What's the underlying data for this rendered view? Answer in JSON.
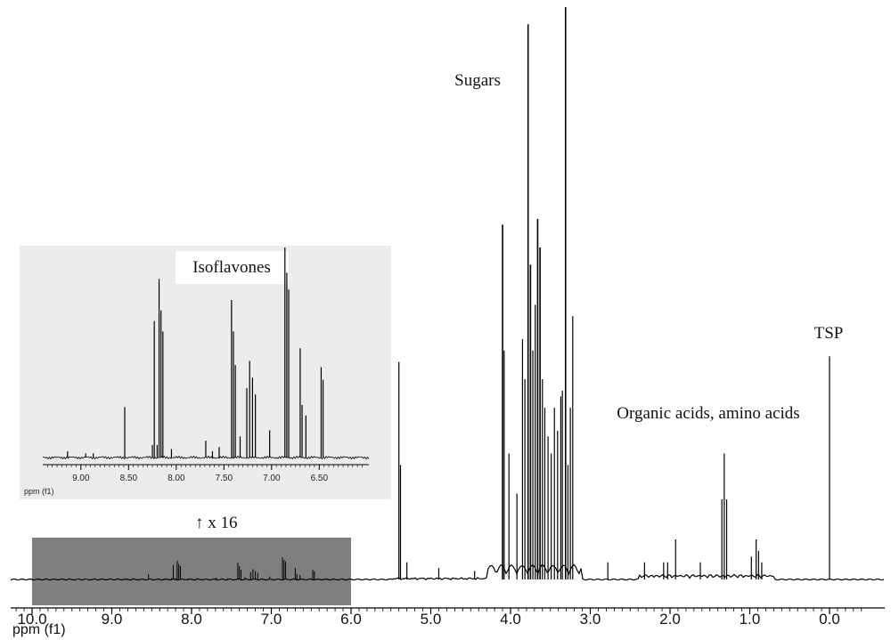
{
  "chart_data": [
    {
      "type": "line",
      "role": "main-spectrum",
      "xlabel": "ppm (f1)",
      "xlim": [
        10.5,
        -0.5
      ],
      "x_reversed": true,
      "ticks": [
        10.0,
        9.0,
        8.0,
        7.0,
        6.0,
        5.0,
        4.0,
        3.0,
        2.0,
        1.0,
        0.0
      ],
      "tick_labels": [
        "10.0",
        "9.0",
        "8.0",
        "7.0",
        "6.0",
        "5.0",
        "4.0",
        "3.0",
        "2.0",
        "1.0",
        "0.0"
      ],
      "ylim": [
        0,
        100
      ],
      "peaks": [
        {
          "x": 5.4,
          "y": 38
        },
        {
          "x": 5.38,
          "y": 20
        },
        {
          "x": 5.3,
          "y": 3
        },
        {
          "x": 4.9,
          "y": 2
        },
        {
          "x": 4.45,
          "y": 1.5
        },
        {
          "x": 4.1,
          "y": 62
        },
        {
          "x": 4.08,
          "y": 40
        },
        {
          "x": 4.02,
          "y": 22
        },
        {
          "x": 3.92,
          "y": 15
        },
        {
          "x": 3.85,
          "y": 42
        },
        {
          "x": 3.82,
          "y": 35
        },
        {
          "x": 3.78,
          "y": 97
        },
        {
          "x": 3.75,
          "y": 55
        },
        {
          "x": 3.72,
          "y": 40
        },
        {
          "x": 3.69,
          "y": 48
        },
        {
          "x": 3.66,
          "y": 63
        },
        {
          "x": 3.63,
          "y": 58
        },
        {
          "x": 3.6,
          "y": 35
        },
        {
          "x": 3.57,
          "y": 30
        },
        {
          "x": 3.53,
          "y": 25
        },
        {
          "x": 3.49,
          "y": 22
        },
        {
          "x": 3.45,
          "y": 30
        },
        {
          "x": 3.41,
          "y": 26
        },
        {
          "x": 3.37,
          "y": 32
        },
        {
          "x": 3.35,
          "y": 33
        },
        {
          "x": 3.31,
          "y": 100
        },
        {
          "x": 3.28,
          "y": 20
        },
        {
          "x": 3.25,
          "y": 30
        },
        {
          "x": 3.22,
          "y": 46
        },
        {
          "x": 2.78,
          "y": 3
        },
        {
          "x": 2.32,
          "y": 3
        },
        {
          "x": 2.08,
          "y": 3
        },
        {
          "x": 2.03,
          "y": 3
        },
        {
          "x": 1.93,
          "y": 7
        },
        {
          "x": 1.62,
          "y": 3
        },
        {
          "x": 1.35,
          "y": 14
        },
        {
          "x": 1.32,
          "y": 22
        },
        {
          "x": 1.29,
          "y": 14
        },
        {
          "x": 0.98,
          "y": 4
        },
        {
          "x": 0.92,
          "y": 7
        },
        {
          "x": 0.89,
          "y": 5
        },
        {
          "x": 0.85,
          "y": 3
        },
        {
          "x": 0.0,
          "y": 39
        }
      ],
      "annotations": [
        {
          "text": "Sugars",
          "x": 3.9
        },
        {
          "text": "Organic acids, amino acids",
          "x": 1.9
        },
        {
          "text": "TSP",
          "x": 0.0
        }
      ],
      "highlight_region": {
        "from": 10.0,
        "to": 6.0,
        "label": "↑ x 16"
      }
    },
    {
      "type": "line",
      "role": "inset-spectrum",
      "title": "Isoflavones",
      "xlabel": "ppm (f1)",
      "xlim": [
        9.4,
        5.98
      ],
      "x_reversed": true,
      "ticks": [
        9.0,
        8.5,
        8.0,
        7.5,
        7.0,
        6.5
      ],
      "tick_labels": [
        "9.00",
        "8.50",
        "8.00",
        "7.50",
        "7.00",
        "6.50"
      ],
      "ylim": [
        0,
        100
      ],
      "peaks": [
        {
          "x": 9.14,
          "y": 3
        },
        {
          "x": 8.95,
          "y": 2
        },
        {
          "x": 8.87,
          "y": 2
        },
        {
          "x": 8.54,
          "y": 24
        },
        {
          "x": 8.25,
          "y": 6
        },
        {
          "x": 8.23,
          "y": 65
        },
        {
          "x": 8.2,
          "y": 6
        },
        {
          "x": 8.18,
          "y": 85
        },
        {
          "x": 8.16,
          "y": 70
        },
        {
          "x": 8.14,
          "y": 60
        },
        {
          "x": 8.05,
          "y": 4
        },
        {
          "x": 7.69,
          "y": 8
        },
        {
          "x": 7.62,
          "y": 3
        },
        {
          "x": 7.55,
          "y": 5
        },
        {
          "x": 7.42,
          "y": 75
        },
        {
          "x": 7.4,
          "y": 60
        },
        {
          "x": 7.38,
          "y": 44
        },
        {
          "x": 7.33,
          "y": 10
        },
        {
          "x": 7.26,
          "y": 33
        },
        {
          "x": 7.23,
          "y": 46
        },
        {
          "x": 7.2,
          "y": 38
        },
        {
          "x": 7.17,
          "y": 30
        },
        {
          "x": 7.02,
          "y": 13
        },
        {
          "x": 6.86,
          "y": 100
        },
        {
          "x": 6.84,
          "y": 88
        },
        {
          "x": 6.82,
          "y": 80
        },
        {
          "x": 6.7,
          "y": 52
        },
        {
          "x": 6.68,
          "y": 25
        },
        {
          "x": 6.64,
          "y": 20
        },
        {
          "x": 6.48,
          "y": 43
        },
        {
          "x": 6.46,
          "y": 37
        }
      ]
    }
  ]
}
